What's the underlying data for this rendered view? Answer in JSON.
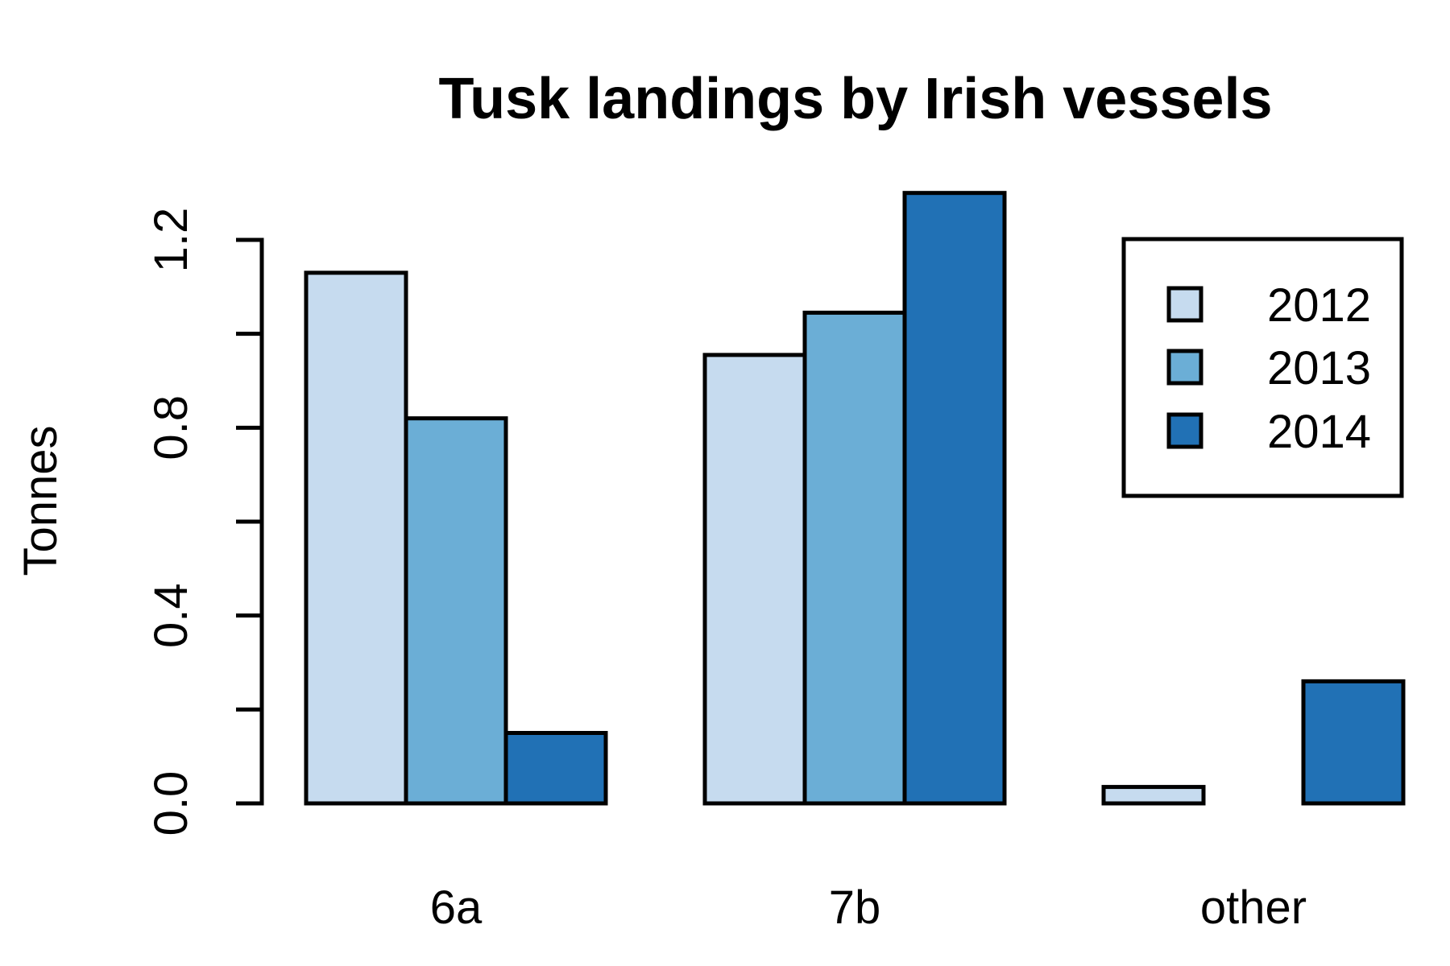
{
  "chart_data": {
    "type": "bar",
    "mode": "grouped",
    "title": "Tusk landings by Irish vessels",
    "xlabel": "",
    "ylabel": "Tonnes",
    "categories": [
      "6a",
      "7b",
      "other"
    ],
    "series": [
      {
        "name": "2012",
        "color": "#C6DBEF",
        "values": [
          1.13,
          0.955,
          0.035
        ]
      },
      {
        "name": "2013",
        "color": "#6BAED6",
        "values": [
          0.82,
          1.045,
          0.0
        ]
      },
      {
        "name": "2014",
        "color": "#2171B5",
        "values": [
          0.15,
          1.3,
          0.26
        ]
      }
    ],
    "ylim": [
      0,
      1.3
    ],
    "yticks": [
      0.0,
      0.2,
      0.4,
      0.6,
      0.8,
      1.0,
      1.2
    ],
    "ytick_labels": [
      "0.0",
      "",
      "0.4",
      "",
      "0.8",
      "",
      "1.2"
    ],
    "grid": false,
    "legend_position": "top-right",
    "bar_border_color": "#000000",
    "background_color": "#FFFFFF"
  }
}
